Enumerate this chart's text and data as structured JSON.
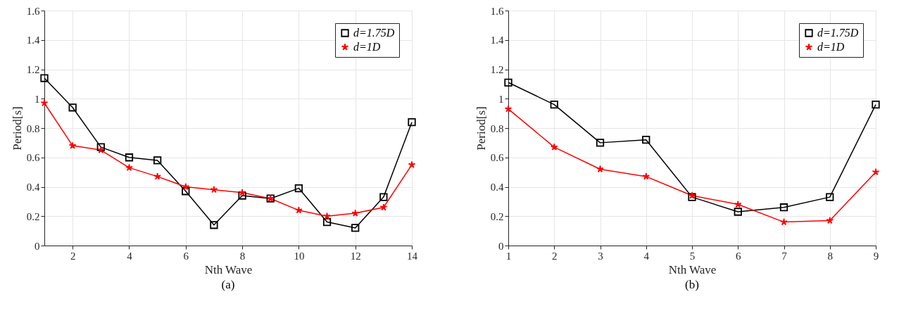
{
  "chart_data": [
    {
      "type": "line",
      "xlabel": "Nth Wave",
      "ylabel": "Period[s]",
      "annotations": [
        "(a)"
      ],
      "x": [
        1,
        2,
        3,
        4,
        5,
        6,
        7,
        8,
        9,
        10,
        11,
        12,
        13,
        14
      ],
      "xlim": [
        1,
        14
      ],
      "xticks": [
        2,
        4,
        6,
        8,
        10,
        12,
        14
      ],
      "ylim": [
        0,
        1.6
      ],
      "yticks": [
        0,
        0.2,
        0.4,
        0.6,
        0.8,
        1,
        1.2,
        1.4,
        1.6
      ],
      "grid": true,
      "legend": "top right",
      "line_style": "solid",
      "series": [
        {
          "name": "d=1.75D",
          "color": "#000000",
          "marker": "square",
          "values": [
            1.14,
            0.94,
            0.67,
            0.6,
            0.58,
            0.37,
            0.14,
            0.34,
            0.32,
            0.39,
            0.16,
            0.12,
            0.33,
            0.84
          ]
        },
        {
          "name": "d=1D",
          "color": "#ff0000",
          "marker": "star",
          "values": [
            0.97,
            0.68,
            0.65,
            0.53,
            0.47,
            0.4,
            0.38,
            0.36,
            0.32,
            0.24,
            0.2,
            0.22,
            0.26,
            0.55
          ]
        }
      ]
    },
    {
      "type": "line",
      "xlabel": "Nth Wave",
      "ylabel": "Period[s]",
      "annotations": [
        "(b)"
      ],
      "x": [
        1,
        2,
        3,
        4,
        5,
        6,
        7,
        8,
        9
      ],
      "xlim": [
        1,
        9
      ],
      "xticks": [
        1,
        2,
        3,
        4,
        5,
        6,
        7,
        8,
        9
      ],
      "ylim": [
        0,
        1.6
      ],
      "yticks": [
        0,
        0.2,
        0.4,
        0.6,
        0.8,
        1,
        1.2,
        1.4,
        1.6
      ],
      "grid": true,
      "legend": "top right",
      "line_style": "solid",
      "series": [
        {
          "name": "d=1.75D",
          "color": "#000000",
          "marker": "square",
          "values": [
            1.11,
            0.96,
            0.7,
            0.72,
            0.33,
            0.23,
            0.26,
            0.33,
            0.96
          ]
        },
        {
          "name": "d=1D",
          "color": "#ff0000",
          "marker": "star",
          "values": [
            0.93,
            0.67,
            0.52,
            0.47,
            0.34,
            0.28,
            0.16,
            0.17,
            0.5
          ]
        }
      ]
    }
  ]
}
